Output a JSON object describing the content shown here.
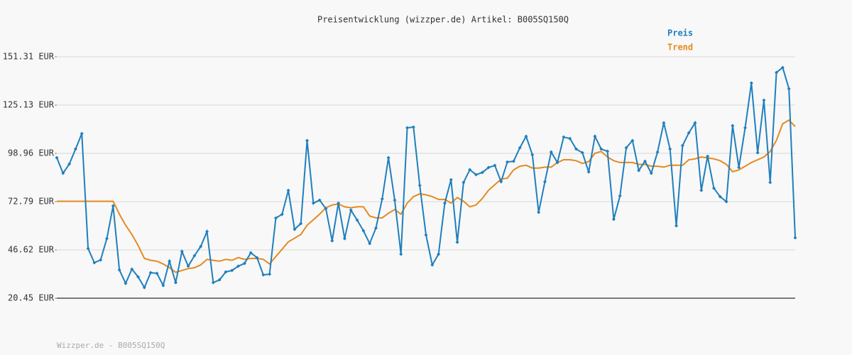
{
  "chart_data": {
    "type": "line",
    "title": "Preisentwicklung (wizzper.de) Artikel: B005SQ150Q",
    "footer": "Wizzper.de - B005SQ150Q",
    "ylim": [
      20.45,
      151.31
    ],
    "yticks": [
      {
        "value": 20.45,
        "label": "20.45 EUR"
      },
      {
        "value": 46.62,
        "label": "46.62 EUR"
      },
      {
        "value": 72.79,
        "label": "72.79 EUR"
      },
      {
        "value": 98.96,
        "label": "98.96 EUR"
      },
      {
        "value": 125.13,
        "label": "125.13 EUR"
      },
      {
        "value": 151.31,
        "label": "151.31 EUR"
      }
    ],
    "grid": true,
    "legend": "top-right",
    "series": [
      {
        "name": "Preis",
        "color": "#1f7fbd",
        "markers": true,
        "values": [
          96.6,
          88.2,
          93.2,
          101.3,
          109.7,
          47.4,
          39.7,
          41.2,
          52.8,
          70.5,
          35.8,
          28.5,
          36.2,
          32.0,
          26.2,
          34.3,
          33.9,
          27.4,
          40.5,
          28.9,
          45.8,
          37.8,
          43.5,
          48.5,
          56.6,
          28.9,
          30.4,
          34.7,
          35.5,
          37.8,
          39.3,
          45.1,
          42.4,
          33.1,
          33.5,
          63.9,
          65.9,
          78.9,
          57.8,
          60.9,
          105.9,
          72.0,
          73.6,
          69.0,
          51.6,
          72.0,
          52.8,
          68.2,
          62.8,
          57.0,
          50.1,
          58.5,
          74.3,
          96.6,
          73.6,
          44.3,
          112.8,
          113.2,
          81.6,
          54.7,
          38.5,
          44.3,
          72.0,
          84.7,
          50.8,
          83.2,
          90.1,
          87.4,
          88.6,
          91.3,
          92.4,
          83.6,
          94.3,
          94.7,
          102.0,
          108.2,
          98.2,
          67.0,
          83.6,
          99.7,
          94.0,
          107.8,
          107.0,
          101.3,
          99.3,
          88.9,
          108.2,
          101.3,
          100.1,
          63.2,
          75.9,
          102.0,
          105.9,
          89.7,
          94.7,
          88.2,
          99.7,
          115.5,
          101.3,
          59.7,
          103.2,
          110.1,
          115.5,
          78.9,
          97.4,
          80.1,
          75.5,
          72.8,
          114.0,
          91.3,
          112.8,
          137.1,
          99.3,
          127.8,
          83.2,
          142.8,
          145.5,
          134.0,
          53.2
        ]
      },
      {
        "name": "Trend",
        "color": "#e58a1f",
        "markers": false,
        "values": [
          73,
          73,
          73,
          73,
          73,
          73,
          73,
          73,
          73,
          73,
          66,
          60,
          55,
          49,
          42,
          41,
          40.5,
          39,
          37,
          34.5,
          35.5,
          36.5,
          37,
          38.5,
          41.5,
          41,
          40.5,
          41.5,
          41,
          42.5,
          41.5,
          42,
          42,
          41.5,
          39,
          43,
          47,
          51,
          53,
          55,
          60,
          63,
          66,
          69.5,
          71,
          71.5,
          70,
          69.5,
          70,
          70,
          65,
          64,
          64,
          66.5,
          68.5,
          66,
          72,
          75.5,
          77,
          76.5,
          75.5,
          74,
          74,
          72,
          75,
          73,
          70,
          71,
          74.5,
          79,
          82,
          85,
          85.5,
          90,
          92,
          92.5,
          91,
          91,
          91.5,
          91.5,
          94,
          95.5,
          95.5,
          95,
          93.5,
          94.5,
          99,
          100,
          97,
          95,
          94,
          94,
          94,
          93,
          93,
          92,
          92,
          91.5,
          92.5,
          92.5,
          92.5,
          95.5,
          96,
          97,
          96.5,
          96,
          95,
          93,
          89,
          90,
          92,
          94,
          95.5,
          97,
          100,
          106,
          115,
          117,
          113.5
        ]
      }
    ]
  }
}
